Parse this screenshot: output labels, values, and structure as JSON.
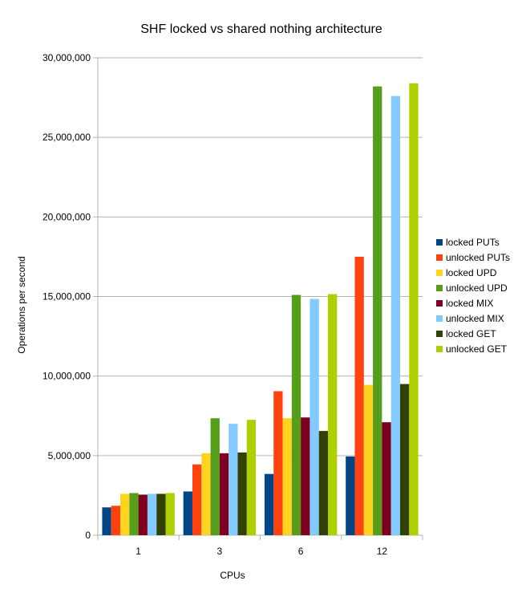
{
  "chart_data": {
    "type": "bar",
    "title": "SHF locked vs shared nothing architecture",
    "xlabel": "CPUs",
    "ylabel": "Operations per second",
    "ylim": [
      0,
      30000000
    ],
    "yticks": [
      "0",
      "5,000,000",
      "10,000,000",
      "15,000,000",
      "20,000,000",
      "25,000,000",
      "30,000,000"
    ],
    "ytick_values": [
      0,
      5000000,
      10000000,
      15000000,
      20000000,
      25000000,
      30000000
    ],
    "categories": [
      "1",
      "3",
      "6",
      "12"
    ],
    "grid": "horizontal",
    "legend_position": "right",
    "series": [
      {
        "name": "locked PUTs",
        "color": "#004586",
        "values": [
          1750000,
          2750000,
          3850000,
          4950000
        ]
      },
      {
        "name": "unlocked PUTs",
        "color": "#ff420e",
        "values": [
          1850000,
          4450000,
          9050000,
          17500000
        ]
      },
      {
        "name": "locked UPD",
        "color": "#ffd320",
        "values": [
          2600000,
          5150000,
          7350000,
          9450000
        ]
      },
      {
        "name": "unlocked UPD",
        "color": "#579d1c",
        "values": [
          2650000,
          7350000,
          15100000,
          28200000
        ]
      },
      {
        "name": "locked MIX",
        "color": "#7e0021",
        "values": [
          2550000,
          5150000,
          7400000,
          7100000
        ]
      },
      {
        "name": "unlocked MIX",
        "color": "#83caff",
        "values": [
          2600000,
          7000000,
          14850000,
          27600000
        ]
      },
      {
        "name": "locked GET",
        "color": "#314004",
        "values": [
          2600000,
          5200000,
          6550000,
          9500000
        ]
      },
      {
        "name": "unlocked GET",
        "color": "#aecf00",
        "values": [
          2650000,
          7250000,
          15150000,
          28400000
        ]
      }
    ]
  }
}
